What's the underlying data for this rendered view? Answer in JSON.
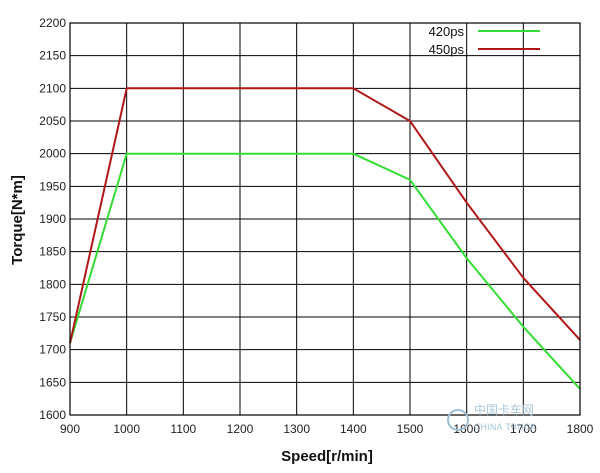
{
  "chart_data": {
    "type": "line",
    "title": "",
    "xlabel": "Speed[r/min]",
    "ylabel": "Torque[N*m]",
    "xlim": [
      900,
      1800
    ],
    "ylim": [
      1600,
      2200
    ],
    "xticks": [
      900,
      1000,
      1100,
      1200,
      1300,
      1400,
      1500,
      1600,
      1700,
      1800
    ],
    "yticks": [
      1600,
      1650,
      1700,
      1750,
      1800,
      1850,
      1900,
      1950,
      2000,
      2050,
      2100,
      2150,
      2200
    ],
    "grid": true,
    "legend": "top-right",
    "series": [
      {
        "name": "420ps",
        "color": "#33dd33",
        "x": [
          900,
          1000,
          1400,
          1500,
          1600,
          1700,
          1800
        ],
        "y": [
          1710,
          2000,
          2000,
          1960,
          1840,
          1735,
          1640
        ]
      },
      {
        "name": "450ps",
        "color": "#b01818",
        "x": [
          900,
          1000,
          1400,
          1500,
          1600,
          1700,
          1800
        ],
        "y": [
          1710,
          2100,
          2100,
          2050,
          1925,
          1810,
          1715
        ]
      }
    ]
  },
  "watermark": {
    "text": "中国卡车网",
    "subtext": "CHINA TRUCK"
  },
  "colors": {
    "frame": "#000000",
    "grid": "#000000",
    "background": "#ffffff"
  }
}
